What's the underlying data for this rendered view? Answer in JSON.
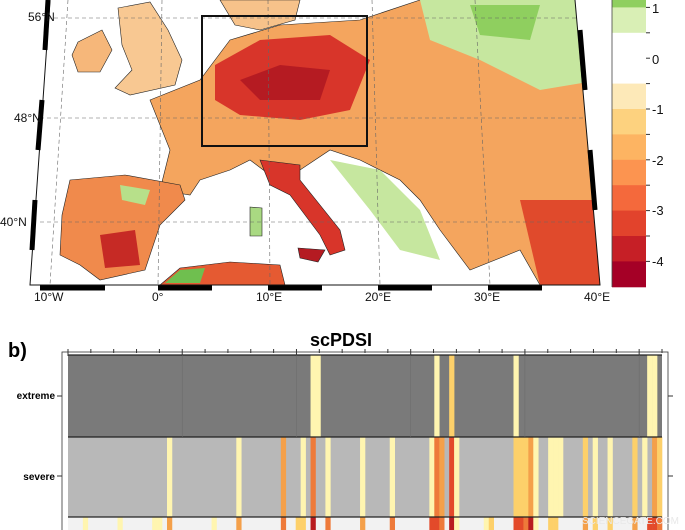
{
  "map": {
    "lat_labels": [
      "56°N",
      "48°N",
      "40°N"
    ],
    "lon_labels": [
      "10°W",
      "0°",
      "10°E",
      "20°E",
      "30°E",
      "40°E"
    ],
    "colorbar": {
      "tick_labels": [
        "1",
        "0",
        "-1",
        "-2",
        "-3",
        "-4"
      ],
      "colors": [
        "#8fcf5f",
        "#d9efb5",
        "#ffffff",
        "#ffffff",
        "#fde9b8",
        "#fdd27f",
        "#fdb462",
        "#fc9450",
        "#f4693c",
        "#e2432c",
        "#c61f26",
        "#a50026"
      ]
    }
  },
  "panel_b": {
    "panel_label": "b)",
    "title": "scPDSI",
    "row_labels": [
      "extreme",
      "severe"
    ],
    "columns": 120,
    "row_backgrounds": [
      "#7a7a7a",
      "#b8b8b8",
      "#f2f2f2"
    ],
    "level_colors": {
      "1": "#fff5b0",
      "2": "#fdd06a",
      "3": "#f4a04a",
      "4": "#ee7a3a",
      "5": "#e34a2a",
      "6": "#b81c20"
    },
    "cells": {
      "extreme": [
        [
          49,
          1
        ],
        [
          50,
          1
        ],
        [
          74,
          1
        ],
        [
          77,
          2
        ],
        [
          90,
          1
        ],
        [
          117,
          1
        ],
        [
          118,
          1
        ]
      ],
      "severe": [
        [
          20,
          1
        ],
        [
          34,
          1
        ],
        [
          43,
          3
        ],
        [
          47,
          1
        ],
        [
          49,
          4
        ],
        [
          52,
          1
        ],
        [
          59,
          1
        ],
        [
          65,
          1
        ],
        [
          73,
          1
        ],
        [
          74,
          4
        ],
        [
          75,
          3
        ],
        [
          77,
          5
        ],
        [
          78,
          1
        ],
        [
          90,
          2
        ],
        [
          91,
          2
        ],
        [
          92,
          2
        ],
        [
          93,
          3
        ],
        [
          94,
          1
        ],
        [
          97,
          1
        ],
        [
          98,
          1
        ],
        [
          99,
          1
        ],
        [
          104,
          2
        ],
        [
          106,
          1
        ],
        [
          109,
          1
        ],
        [
          114,
          2
        ],
        [
          116,
          1
        ],
        [
          118,
          3
        ],
        [
          119,
          2
        ]
      ],
      "moderate": [
        [
          3,
          1
        ],
        [
          10,
          1
        ],
        [
          17,
          1
        ],
        [
          18,
          1
        ],
        [
          20,
          3
        ],
        [
          29,
          1
        ],
        [
          34,
          3
        ],
        [
          43,
          4
        ],
        [
          46,
          2
        ],
        [
          47,
          2
        ],
        [
          49,
          6
        ],
        [
          52,
          4
        ],
        [
          59,
          3
        ],
        [
          65,
          4
        ],
        [
          73,
          5
        ],
        [
          74,
          5
        ],
        [
          75,
          4
        ],
        [
          77,
          6
        ],
        [
          78,
          1
        ],
        [
          84,
          1
        ],
        [
          85,
          2
        ],
        [
          90,
          5
        ],
        [
          91,
          5
        ],
        [
          92,
          4
        ],
        [
          93,
          6
        ],
        [
          94,
          1
        ],
        [
          97,
          2
        ],
        [
          98,
          2
        ],
        [
          104,
          3
        ],
        [
          106,
          2
        ],
        [
          109,
          2
        ],
        [
          114,
          3
        ],
        [
          117,
          5
        ],
        [
          118,
          5
        ],
        [
          119,
          4
        ]
      ]
    },
    "watermark": "SCIENCEGATE.COM"
  }
}
